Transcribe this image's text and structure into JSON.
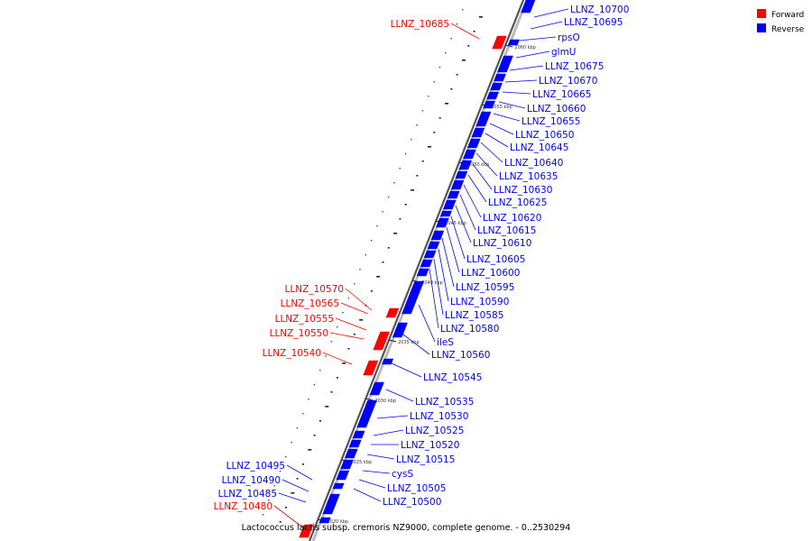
{
  "caption": "Lactococcus lactis subsp. cremoris NZ9000, complete genome. - 0..2530294",
  "legend": [
    {
      "label": "Forward",
      "color": "#ff0000"
    },
    {
      "label": "Reverse",
      "color": "#0000ff"
    }
  ],
  "colors": {
    "forward": "#ff0000",
    "reverse": "#0000ff",
    "backbone": "#555555"
  },
  "ticks": [
    "2060 kbp",
    "2055 kbp",
    "2050 kbp",
    "2045 kbp",
    "2040 kbp",
    "2035 kbp",
    "2030 kbp",
    "2025 kbp",
    "2020 kbp"
  ],
  "genes": [
    {
      "name": "LLNZ_10700",
      "strand": "reverse"
    },
    {
      "name": "LLNZ_10695",
      "strand": "reverse"
    },
    {
      "name": "LLNZ_10685",
      "strand": "forward"
    },
    {
      "name": "rpsO",
      "strand": "reverse"
    },
    {
      "name": "glmU",
      "strand": "reverse"
    },
    {
      "name": "LLNZ_10675",
      "strand": "reverse"
    },
    {
      "name": "LLNZ_10670",
      "strand": "reverse"
    },
    {
      "name": "LLNZ_10665",
      "strand": "reverse"
    },
    {
      "name": "LLNZ_10660",
      "strand": "reverse"
    },
    {
      "name": "LLNZ_10655",
      "strand": "reverse"
    },
    {
      "name": "LLNZ_10650",
      "strand": "reverse"
    },
    {
      "name": "LLNZ_10645",
      "strand": "reverse"
    },
    {
      "name": "LLNZ_10640",
      "strand": "reverse"
    },
    {
      "name": "LLNZ_10635",
      "strand": "reverse"
    },
    {
      "name": "LLNZ_10630",
      "strand": "reverse"
    },
    {
      "name": "LLNZ_10625",
      "strand": "reverse"
    },
    {
      "name": "LLNZ_10620",
      "strand": "reverse"
    },
    {
      "name": "LLNZ_10615",
      "strand": "reverse"
    },
    {
      "name": "LLNZ_10610",
      "strand": "reverse"
    },
    {
      "name": "LLNZ_10605",
      "strand": "reverse"
    },
    {
      "name": "LLNZ_10600",
      "strand": "reverse"
    },
    {
      "name": "LLNZ_10595",
      "strand": "reverse"
    },
    {
      "name": "LLNZ_10590",
      "strand": "reverse"
    },
    {
      "name": "LLNZ_10585",
      "strand": "reverse"
    },
    {
      "name": "LLNZ_10580",
      "strand": "reverse"
    },
    {
      "name": "LLNZ_10570",
      "strand": "forward"
    },
    {
      "name": "LLNZ_10565",
      "strand": "forward"
    },
    {
      "name": "LLNZ_10555",
      "strand": "forward"
    },
    {
      "name": "LLNZ_10550",
      "strand": "forward"
    },
    {
      "name": "ileS",
      "strand": "reverse"
    },
    {
      "name": "LLNZ_10560",
      "strand": "reverse"
    },
    {
      "name": "LLNZ_10540",
      "strand": "forward"
    },
    {
      "name": "LLNZ_10545",
      "strand": "reverse"
    },
    {
      "name": "LLNZ_10535",
      "strand": "reverse"
    },
    {
      "name": "LLNZ_10530",
      "strand": "reverse"
    },
    {
      "name": "LLNZ_10525",
      "strand": "reverse"
    },
    {
      "name": "LLNZ_10520",
      "strand": "reverse"
    },
    {
      "name": "LLNZ_10515",
      "strand": "reverse"
    },
    {
      "name": "cysS",
      "strand": "reverse"
    },
    {
      "name": "LLNZ_10505",
      "strand": "reverse"
    },
    {
      "name": "LLNZ_10500",
      "strand": "reverse"
    },
    {
      "name": "LLNZ_10495",
      "strand": "reverse"
    },
    {
      "name": "LLNZ_10490",
      "strand": "reverse"
    },
    {
      "name": "LLNZ_10485",
      "strand": "reverse"
    },
    {
      "name": "LLNZ_10480",
      "strand": "forward"
    }
  ]
}
